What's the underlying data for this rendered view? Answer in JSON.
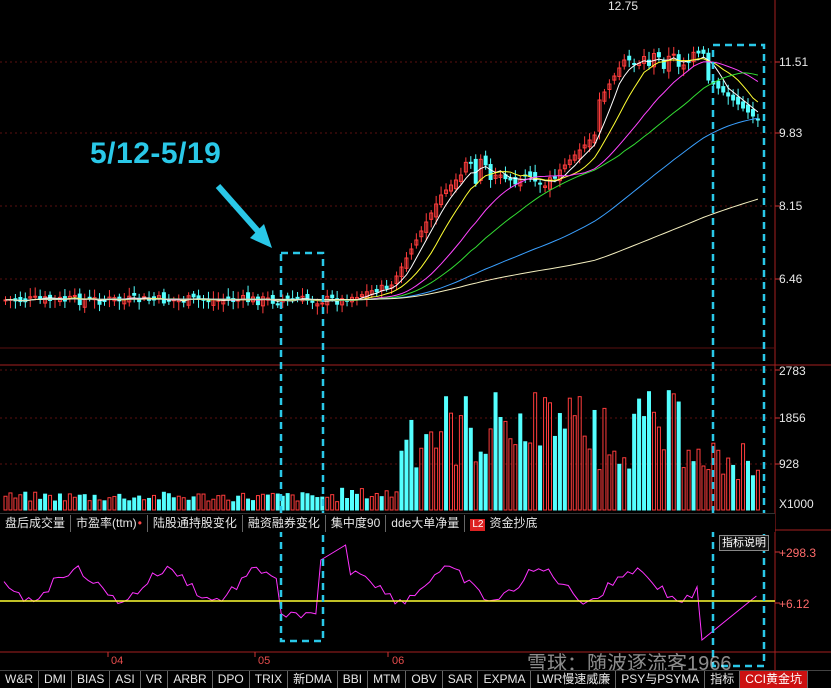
{
  "price_axis": {
    "labels": [
      "11.51",
      "9.83",
      "8.15",
      "6.46"
    ],
    "high_label": "12.75"
  },
  "volume_axis": {
    "labels": [
      "2783",
      "1856",
      "928"
    ],
    "unit": "X1000"
  },
  "indicator_axis": {
    "labels": [
      "+298.3",
      "+6.12"
    ]
  },
  "annotation": {
    "text": "5/12-5/19"
  },
  "tabs": [
    {
      "label": "盘后成交量",
      "dot": false
    },
    {
      "label": "市盈率(ttm)",
      "dot": true
    },
    {
      "label": "陆股通持股变化",
      "dot": false
    },
    {
      "label": "融资融券变化",
      "dot": false
    },
    {
      "label": "集中度90",
      "dot": false
    },
    {
      "label": "dde大单净量",
      "dot": false
    }
  ],
  "tab_badge": {
    "badge": "L2",
    "label": "资金抄底"
  },
  "indicator_button": "指标说明",
  "months": [
    {
      "label": "04"
    },
    {
      "label": "05"
    },
    {
      "label": "06"
    }
  ],
  "bottom_tabs": [
    {
      "label": "W&R",
      "active": false
    },
    {
      "label": "DMI",
      "active": false
    },
    {
      "label": "BIAS",
      "active": false
    },
    {
      "label": "ASI",
      "active": false
    },
    {
      "label": "VR",
      "active": false
    },
    {
      "label": "ARBR",
      "active": false
    },
    {
      "label": "DPO",
      "active": false
    },
    {
      "label": "TRIX",
      "active": false
    },
    {
      "label": "新DMA",
      "active": false
    },
    {
      "label": "BBI",
      "active": false
    },
    {
      "label": "MTM",
      "active": false
    },
    {
      "label": "OBV",
      "active": false
    },
    {
      "label": "SAR",
      "active": false
    },
    {
      "label": "EXPMA",
      "active": false
    },
    {
      "label": "LWR慢速威廉",
      "active": false
    },
    {
      "label": "PSY与PSYMA",
      "active": false
    },
    {
      "label": "指标",
      "active": false
    },
    {
      "label": "CCI黄金坑",
      "active": true
    }
  ],
  "watermark": "雪球：随波逐流客1966",
  "colors": {
    "up": "#ff3c3c",
    "down": "#54ffff",
    "cci": "#ff33ff",
    "highlight": "#2ac8e8",
    "baseline": "#ffff33"
  }
}
